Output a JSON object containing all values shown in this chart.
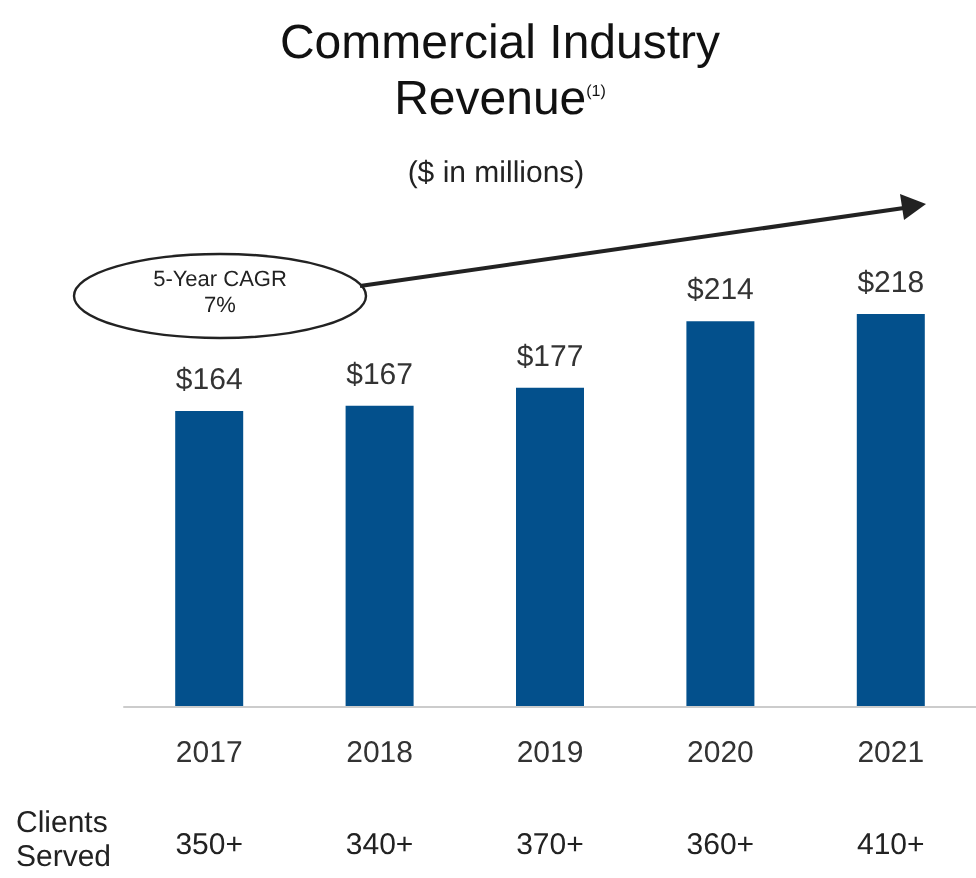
{
  "chart_data": {
    "type": "bar",
    "title": "Commercial Industry Revenue$^{(1)}$",
    "subtitle": "($ in millions)",
    "categories": [
      "2017",
      "2018",
      "2019",
      "2020",
      "2021"
    ],
    "values": [
      164,
      167,
      177,
      214,
      218
    ],
    "value_labels": [
      "$164",
      "$167",
      "$177",
      "$214",
      "$218"
    ],
    "color": "#03508c",
    "tick_labels": "x",
    "annotations": [
      "5-Year CAGR 7%",
      "Clients Served",
      "350+",
      "340+",
      "370+",
      "360+",
      "410+"
    ]
  }
}
